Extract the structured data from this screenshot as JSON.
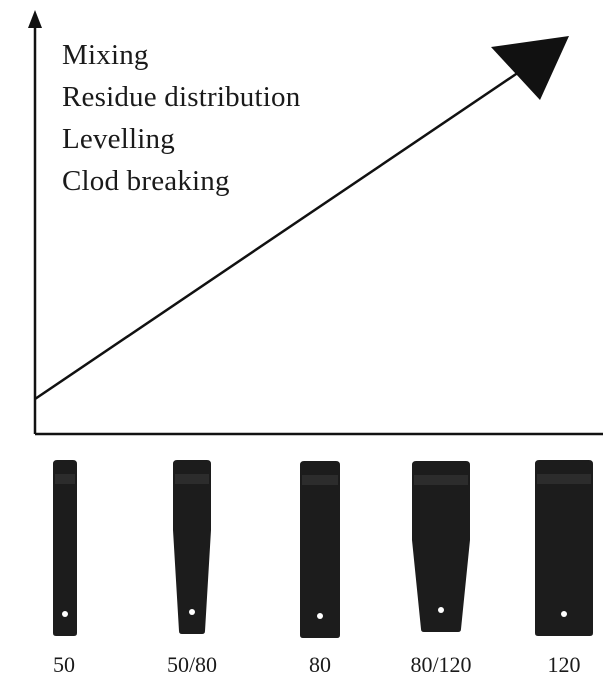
{
  "diagram": {
    "features": [
      "Mixing",
      "Residue distribution",
      "Levelling",
      "Clod breaking"
    ],
    "tines": [
      {
        "label": "50",
        "shape": "narrow"
      },
      {
        "label": "50/80",
        "shape": "taper"
      },
      {
        "label": "80",
        "shape": "medium"
      },
      {
        "label": "80/120",
        "shape": "wide-taper"
      },
      {
        "label": "120",
        "shape": "wide"
      }
    ],
    "colors": {
      "line": "#111111",
      "tine": "#1c1c1c",
      "tine_highlight": "#3a3a3a"
    }
  }
}
